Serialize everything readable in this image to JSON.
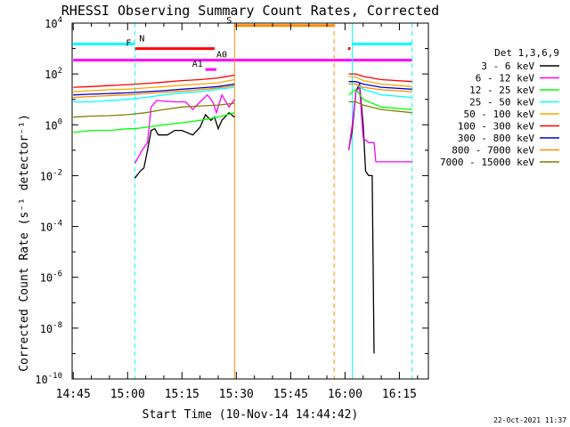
{
  "chart_data": {
    "type": "line",
    "title": "RHESSI Observing Summary Count Rates, Corrected",
    "xlabel": "Start Time (10-Nov-14 14:44:42)",
    "ylabel": "Corrected Count Rate (s⁻¹ detector⁻¹)",
    "yscale": "log",
    "ylim": [
      1e-10,
      10000
    ],
    "xlim": [
      "14:44:42",
      "16:23:00"
    ],
    "x_ticks": [
      "14:45",
      "15:00",
      "15:15",
      "15:30",
      "15:45",
      "16:00",
      "16:15"
    ],
    "y_ticks": [
      {
        "value": 1e-10,
        "label_base": "10",
        "label_exp": "-10"
      },
      {
        "value": 1e-08,
        "label_base": "10",
        "label_exp": "-8"
      },
      {
        "value": 1e-06,
        "label_base": "10",
        "label_exp": "-6"
      },
      {
        "value": 0.0001,
        "label_base": "10",
        "label_exp": "-4"
      },
      {
        "value": 0.01,
        "label_base": "10",
        "label_exp": "-2"
      },
      {
        "value": 1,
        "label_base": "10",
        "label_exp": "0"
      },
      {
        "value": 100,
        "label_base": "10",
        "label_exp": "2"
      },
      {
        "value": 10000,
        "label_base": "10",
        "label_exp": "4"
      }
    ],
    "legend_title": "Det 1,3,6,9",
    "legend_position": "right",
    "series": [
      {
        "name": "3 - 6 keV",
        "color": "#000000",
        "segments": [
          [
            [
              "15:02:00",
              0.008
            ],
            [
              "15:03:30",
              0.015
            ],
            [
              "15:04:30",
              0.02
            ],
            [
              "15:05:30",
              0.1
            ],
            [
              "15:06:30",
              0.6
            ],
            [
              "15:07:30",
              0.7
            ],
            [
              "15:08:30",
              0.4
            ],
            [
              "15:11:00",
              0.4
            ],
            [
              "15:13:00",
              0.6
            ],
            [
              "15:15:00",
              0.6
            ],
            [
              "15:18:00",
              0.4
            ],
            [
              "15:20:00",
              0.8
            ],
            [
              "15:21:30",
              2.5
            ],
            [
              "15:23:00",
              1.5
            ],
            [
              "15:24:00",
              2.0
            ],
            [
              "15:25:00",
              0.7
            ],
            [
              "15:26:00",
              1.5
            ],
            [
              "15:28:00",
              3.0
            ],
            [
              "15:29:30",
              2.0
            ]
          ],
          [
            [
              "16:01:00",
              0.1
            ],
            [
              "16:02:00",
              0.6
            ],
            [
              "16:03:00",
              20
            ],
            [
              "16:04:00",
              40
            ],
            [
              "16:05:00",
              1
            ],
            [
              "16:05:40",
              0.015
            ],
            [
              "16:06:30",
              0.01
            ],
            [
              "16:07:30",
              0.01
            ],
            [
              "16:08:00",
              1e-09
            ]
          ]
        ]
      },
      {
        "name": "6 - 12 keV",
        "color": "#ff00ff",
        "segments": [
          [
            [
              "15:02:00",
              0.03
            ],
            [
              "15:04:00",
              0.1
            ],
            [
              "15:05:30",
              0.2
            ],
            [
              "15:06:30",
              5
            ],
            [
              "15:08:00",
              9
            ],
            [
              "15:13:00",
              8
            ],
            [
              "15:16:00",
              8
            ],
            [
              "15:18:00",
              4
            ],
            [
              "15:20:00",
              8
            ],
            [
              "15:22:00",
              15
            ],
            [
              "15:23:30",
              8
            ],
            [
              "15:24:30",
              3
            ],
            [
              "15:26:00",
              15
            ],
            [
              "15:28:00",
              5
            ],
            [
              "15:29:30",
              10
            ]
          ],
          [
            [
              "16:01:00",
              0.1
            ],
            [
              "16:02:00",
              1
            ],
            [
              "16:03:00",
              20
            ],
            [
              "16:04:00",
              30
            ],
            [
              "16:05:00",
              0.3
            ],
            [
              "16:06:30",
              0.2
            ],
            [
              "16:08:00",
              0.2
            ],
            [
              "16:08:30",
              0.035
            ],
            [
              "16:18:30",
              0.035
            ]
          ]
        ]
      },
      {
        "name": "12 - 25 keV",
        "color": "#00ff00",
        "segments": [
          [
            [
              "14:45:00",
              0.5
            ],
            [
              "14:50:00",
              0.6
            ],
            [
              "14:55:00",
              0.6
            ],
            [
              "15:00:00",
              0.7
            ],
            [
              "15:02:00",
              0.7
            ],
            [
              "15:05:00",
              0.8
            ],
            [
              "15:10:00",
              1.0
            ],
            [
              "15:15:00",
              1.2
            ],
            [
              "15:20:00",
              1.5
            ],
            [
              "15:25:00",
              2.0
            ],
            [
              "15:29:30",
              3.0
            ]
          ],
          [
            [
              "16:01:00",
              15
            ],
            [
              "16:03:00",
              25
            ],
            [
              "16:05:00",
              10
            ],
            [
              "16:10:00",
              5
            ],
            [
              "16:18:30",
              4
            ]
          ]
        ]
      },
      {
        "name": "25 - 50 keV",
        "color": "#00ffff",
        "segments": [
          [
            [
              "14:45:00",
              8
            ],
            [
              "14:50:00",
              8
            ],
            [
              "14:55:00",
              9
            ],
            [
              "15:00:00",
              10
            ],
            [
              "15:05:00",
              12
            ],
            [
              "15:10:00",
              15
            ],
            [
              "15:15:00",
              18
            ],
            [
              "15:20:00",
              20
            ],
            [
              "15:25:00",
              25
            ],
            [
              "15:29:30",
              30
            ]
          ],
          [
            [
              "16:01:00",
              40
            ],
            [
              "16:03:00",
              40
            ],
            [
              "16:05:00",
              25
            ],
            [
              "16:10:00",
              15
            ],
            [
              "16:18:30",
              12
            ]
          ]
        ]
      },
      {
        "name": "50 - 100 keV",
        "color": "#ffa500",
        "segments": [
          [
            [
              "14:45:00",
              20
            ],
            [
              "14:50:00",
              22
            ],
            [
              "14:55:00",
              24
            ],
            [
              "15:00:00",
              25
            ],
            [
              "15:05:00",
              28
            ],
            [
              "15:10:00",
              32
            ],
            [
              "15:15:00",
              36
            ],
            [
              "15:20:00",
              40
            ],
            [
              "15:25:00",
              45
            ],
            [
              "15:29:30",
              60
            ]
          ],
          [
            [
              "16:01:00",
              80
            ],
            [
              "16:03:00",
              75
            ],
            [
              "16:05:00",
              55
            ],
            [
              "16:10:00",
              40
            ],
            [
              "16:18:30",
              32
            ]
          ]
        ]
      },
      {
        "name": "100 - 300 keV",
        "color": "#ff0000",
        "segments": [
          [
            [
              "14:45:00",
              30
            ],
            [
              "14:50:00",
              32
            ],
            [
              "14:55:00",
              35
            ],
            [
              "15:00:00",
              38
            ],
            [
              "15:05:00",
              42
            ],
            [
              "15:10:00",
              48
            ],
            [
              "15:15:00",
              55
            ],
            [
              "15:20:00",
              60
            ],
            [
              "15:25:00",
              70
            ],
            [
              "15:29:30",
              90
            ]
          ],
          [
            [
              "16:01:00",
              100
            ],
            [
              "16:03:00",
              100
            ],
            [
              "16:05:00",
              80
            ],
            [
              "16:10:00",
              60
            ],
            [
              "16:18:30",
              50
            ]
          ]
        ]
      },
      {
        "name": "300 - 800 keV",
        "color": "#0000cd",
        "segments": [
          [
            [
              "14:45:00",
              15
            ],
            [
              "14:50:00",
              16
            ],
            [
              "14:55:00",
              17
            ],
            [
              "15:00:00",
              18
            ],
            [
              "15:05:00",
              20
            ],
            [
              "15:10:00",
              22
            ],
            [
              "15:15:00",
              25
            ],
            [
              "15:20:00",
              28
            ],
            [
              "15:25:00",
              32
            ],
            [
              "15:29:30",
              40
            ]
          ],
          [
            [
              "16:01:00",
              50
            ],
            [
              "16:03:00",
              50
            ],
            [
              "16:05:00",
              40
            ],
            [
              "16:10:00",
              30
            ],
            [
              "16:18:30",
              25
            ]
          ]
        ]
      },
      {
        "name": "800 - 7000 keV",
        "color": "#ff8c00",
        "segments": [
          [
            [
              "14:45:00",
              12
            ],
            [
              "14:50:00",
              13
            ],
            [
              "14:55:00",
              14
            ],
            [
              "15:00:00",
              15
            ],
            [
              "15:05:00",
              17
            ],
            [
              "15:10:00",
              19
            ],
            [
              "15:15:00",
              21
            ],
            [
              "15:20:00",
              24
            ],
            [
              "15:25:00",
              28
            ],
            [
              "15:29:30",
              35
            ]
          ],
          [
            [
              "16:01:00",
              40
            ],
            [
              "16:03:00",
              40
            ],
            [
              "16:05:00",
              30
            ],
            [
              "16:10:00",
              24
            ],
            [
              "16:18:30",
              20
            ]
          ]
        ]
      },
      {
        "name": "7000 - 15000 keV",
        "color": "#808000",
        "segments": [
          [
            [
              "14:45:00",
              2
            ],
            [
              "14:50:00",
              2.2
            ],
            [
              "14:55:00",
              2.3
            ],
            [
              "15:00:00",
              2.5
            ],
            [
              "15:05:00",
              3
            ],
            [
              "15:10:00",
              4
            ],
            [
              "15:15:00",
              5
            ],
            [
              "15:20:00",
              5.5
            ],
            [
              "15:25:00",
              6
            ],
            [
              "15:29:30",
              7
            ]
          ],
          [
            [
              "16:01:00",
              8
            ],
            [
              "16:03:00",
              8
            ],
            [
              "16:05:00",
              6
            ],
            [
              "16:10:00",
              4
            ],
            [
              "16:18:30",
              3
            ]
          ]
        ]
      }
    ],
    "flag_bars": [
      {
        "label": "N",
        "color": "#00ffff",
        "y": 1500,
        "spans": [
          [
            "14:45:00",
            "15:02:00"
          ],
          [
            "16:02:00",
            "16:18:30"
          ]
        ]
      },
      {
        "label": "F",
        "color": "#ff0000",
        "y": 1000,
        "spans": [
          [
            "15:02:00",
            "15:24:00"
          ],
          [
            "16:00:50",
            "16:01:30"
          ]
        ]
      },
      {
        "label": "S",
        "color": "#ff8c00",
        "y": 8000,
        "spans": [
          [
            "15:29:30",
            "15:57:00"
          ]
        ]
      },
      {
        "label": "A0",
        "color": "#ff00ff",
        "y": 350,
        "spans": [
          [
            "14:45:00",
            "16:18:30"
          ]
        ]
      },
      {
        "label": "A1",
        "color": "#ff00ff",
        "y": 150,
        "spans": [
          [
            "15:21:30",
            "15:24:30"
          ]
        ]
      }
    ],
    "vertical_lines": [
      {
        "x": "14:44:42",
        "color": "#00ffff",
        "style": "solid"
      },
      {
        "x": "15:02:00",
        "color": "#00ffff",
        "style": "dashed"
      },
      {
        "x": "15:29:30",
        "color": "#ff8c00",
        "style": "solid"
      },
      {
        "x": "15:57:00",
        "color": "#ff8c00",
        "style": "dashed"
      },
      {
        "x": "16:02:00",
        "color": "#00ffff",
        "style": "solid"
      },
      {
        "x": "16:18:30",
        "color": "#00ffff",
        "style": "dashed"
      }
    ],
    "grid": false
  },
  "footer": {
    "timestamp": "22-Oct-2021 11:37"
  }
}
